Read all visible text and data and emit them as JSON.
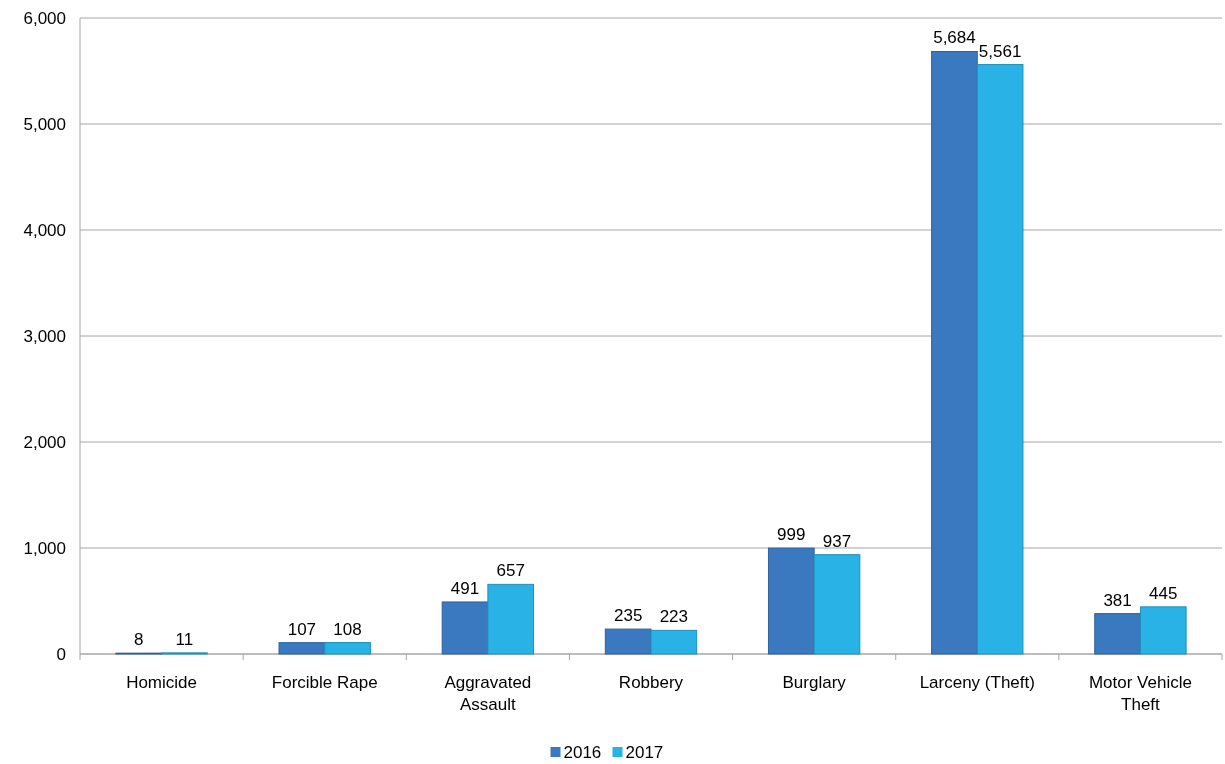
{
  "chart_data": {
    "type": "bar",
    "categories": [
      "Homicide",
      "Forcible Rape",
      "Aggravated Assault",
      "Robbery",
      "Burglary",
      "Larceny (Theft)",
      "Motor Vehicle Theft"
    ],
    "series": [
      {
        "name": "2016",
        "color": "#3a78c0",
        "values": [
          8,
          107,
          491,
          235,
          999,
          5684,
          381
        ],
        "value_labels": [
          "8",
          "107",
          "491",
          "235",
          "999",
          "5,684",
          "381"
        ]
      },
      {
        "name": "2017",
        "color": "#29b2e6",
        "values": [
          11,
          108,
          657,
          223,
          937,
          5561,
          445
        ],
        "value_labels": [
          "11",
          "108",
          "657",
          "223",
          "937",
          "5,561",
          "445"
        ]
      }
    ],
    "ylim": [
      0,
      6000
    ],
    "yticks": [
      0,
      {
        "value": 1000,
        "label": "1,000"
      },
      {
        "value": 2000,
        "label": "2,000"
      },
      {
        "value": 3000,
        "label": "3,000"
      },
      {
        "value": 4000,
        "label": "4,000"
      },
      {
        "value": 5000,
        "label": "5,000"
      },
      {
        "value": 6000,
        "label": "6,000"
      }
    ],
    "grid": "y",
    "legend": "bottom"
  }
}
